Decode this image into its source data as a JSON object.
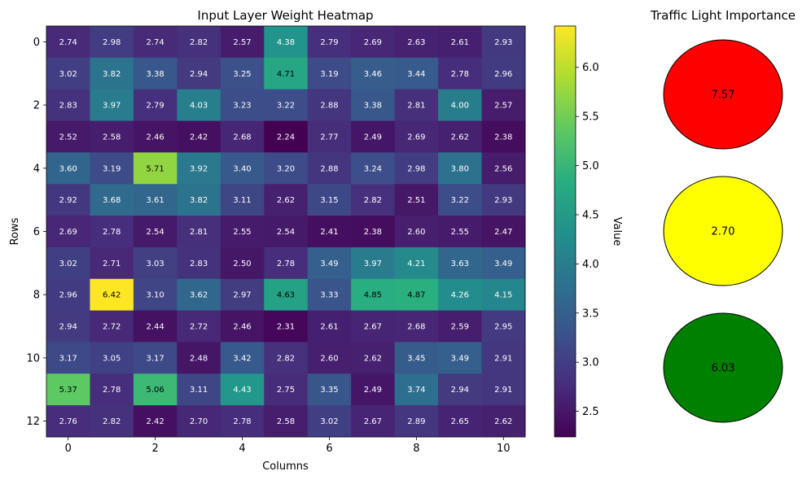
{
  "chart_data": [
    {
      "type": "heatmap",
      "title": "Input Layer Weight Heatmap",
      "xlabel": "Columns",
      "ylabel": "Rows",
      "x_ticks": [
        "0",
        "2",
        "4",
        "6",
        "8",
        "10"
      ],
      "y_ticks": [
        "0",
        "2",
        "4",
        "6",
        "8",
        "10",
        "12"
      ],
      "colorbar": {
        "label": "Value",
        "ticks": [
          "2.5",
          "3.0",
          "3.5",
          "4.0",
          "4.5",
          "5.0",
          "5.5",
          "6.0"
        ],
        "range": [
          2.24,
          6.42
        ],
        "colormap": "viridis"
      },
      "values": [
        [
          "2.74",
          "2.98",
          "2.74",
          "2.82",
          "2.57",
          "4.38",
          "2.79",
          "2.69",
          "2.63",
          "2.61",
          "2.93"
        ],
        [
          "3.02",
          "3.82",
          "3.38",
          "2.94",
          "3.25",
          "4.71",
          "3.19",
          "3.46",
          "3.44",
          "2.78",
          "2.96"
        ],
        [
          "2.83",
          "3.97",
          "2.79",
          "4.03",
          "3.23",
          "3.22",
          "2.88",
          "3.38",
          "2.81",
          "4.00",
          "2.57"
        ],
        [
          "2.52",
          "2.58",
          "2.46",
          "2.42",
          "2.68",
          "2.24",
          "2.77",
          "2.49",
          "2.69",
          "2.62",
          "2.38"
        ],
        [
          "3.60",
          "3.19",
          "5.71",
          "3.92",
          "3.40",
          "3.20",
          "2.88",
          "3.24",
          "2.98",
          "3.80",
          "2.56"
        ],
        [
          "2.92",
          "3.68",
          "3.61",
          "3.82",
          "3.11",
          "2.62",
          "3.15",
          "2.82",
          "2.51",
          "3.22",
          "2.93"
        ],
        [
          "2.69",
          "2.78",
          "2.54",
          "2.81",
          "2.55",
          "2.54",
          "2.41",
          "2.38",
          "2.60",
          "2.55",
          "2.47"
        ],
        [
          "3.02",
          "2.71",
          "3.03",
          "2.83",
          "2.50",
          "2.78",
          "3.49",
          "3.97",
          "4.21",
          "3.63",
          "3.49"
        ],
        [
          "2.96",
          "6.42",
          "3.10",
          "3.62",
          "2.97",
          "4.63",
          "3.33",
          "4.85",
          "4.87",
          "4.26",
          "4.15"
        ],
        [
          "2.94",
          "2.72",
          "2.44",
          "2.72",
          "2.46",
          "2.31",
          "2.61",
          "2.67",
          "2.68",
          "2.59",
          "2.95"
        ],
        [
          "3.17",
          "3.05",
          "3.17",
          "2.48",
          "3.42",
          "2.82",
          "2.60",
          "2.62",
          "3.45",
          "3.49",
          "2.91"
        ],
        [
          "5.37",
          "2.78",
          "5.06",
          "3.11",
          "4.43",
          "2.75",
          "3.35",
          "2.49",
          "3.74",
          "2.94",
          "2.91"
        ],
        [
          "2.76",
          "2.82",
          "2.42",
          "2.70",
          "2.78",
          "2.58",
          "3.02",
          "2.67",
          "2.89",
          "2.65",
          "2.62"
        ]
      ]
    },
    {
      "type": "other",
      "title": "Traffic Light Importance",
      "lights": [
        {
          "value": "7.57",
          "color": "#ff0000"
        },
        {
          "value": "2.70",
          "color": "#ffff00"
        },
        {
          "value": "6.03",
          "color": "#008000"
        }
      ]
    }
  ]
}
